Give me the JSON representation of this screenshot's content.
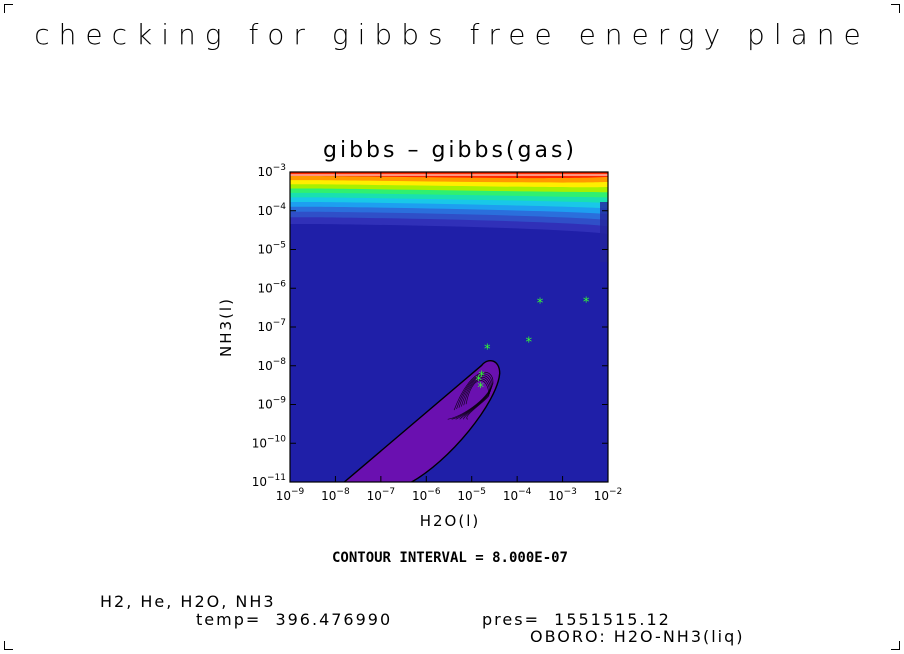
{
  "page_title": "checking for gibbs free energy plane",
  "chart_data": {
    "type": "contour",
    "title": "gibbs – gibbs(gas)",
    "xlabel": "H2O(l)",
    "ylabel": "NH3(l)",
    "x_scale": "log",
    "y_scale": "log",
    "xlim": [
      1e-09,
      0.01
    ],
    "ylim": [
      1e-11,
      0.001
    ],
    "x_ticks": [
      "10^-9",
      "10^-8",
      "10^-7",
      "10^-6",
      "10^-5",
      "10^-4",
      "10^-3",
      "10^-2"
    ],
    "y_ticks": [
      "10^-11",
      "10^-10",
      "10^-9",
      "10^-8",
      "10^-7",
      "10^-6",
      "10^-5",
      "10^-4",
      "10^-3"
    ],
    "contour_interval": "CONTOUR INTERVAL = 8.000E-07",
    "points": [
      {
        "x": 1.57e-05,
        "y": 3e-09
      },
      {
        "x": 1.42e-05,
        "y": 4.5e-09
      },
      {
        "x": 1.65e-05,
        "y": 6e-09
      },
      {
        "x": 2.2e-05,
        "y": 3e-08
      },
      {
        "x": 0.00018,
        "y": 4.5e-08
      },
      {
        "x": 0.00032,
        "y": 4.5e-07
      },
      {
        "x": 0.0033,
        "y": 4.8e-07
      }
    ],
    "colors": {
      "background": "#1f1fa8",
      "basin": "#6a10b0",
      "points": "#33ff33",
      "bands": [
        "#3030b8",
        "#2f4fc8",
        "#2a6fdc",
        "#1d9ff0",
        "#19c8e8",
        "#19e0b0",
        "#30f070",
        "#a8f000",
        "#ffee00",
        "#ff9900",
        "#ff2a00"
      ]
    }
  },
  "footer": {
    "species": "H2, He, H2O, NH3",
    "temp": "temp=  396.476990",
    "pres": "pres=  1551515.12",
    "code": "OBORO: H2O-NH3(liq)"
  }
}
